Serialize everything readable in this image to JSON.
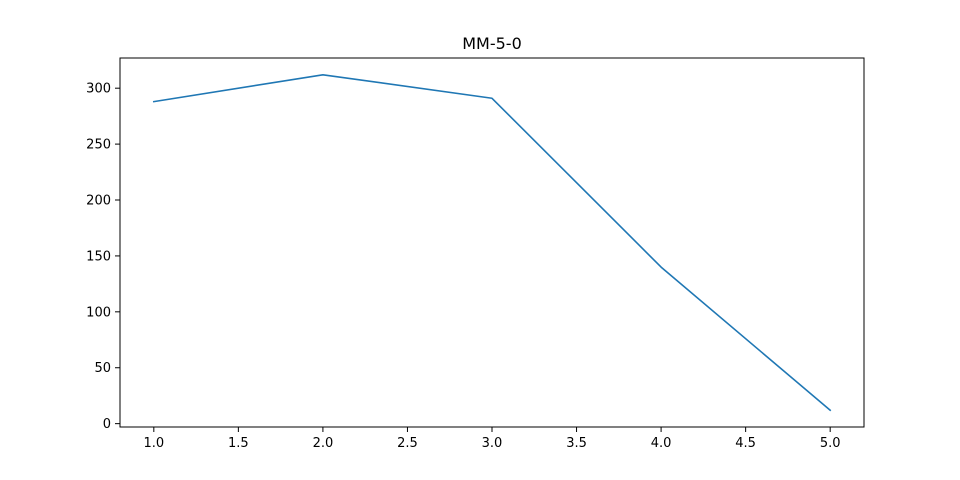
{
  "chart_data": {
    "type": "line",
    "title": "MM-5-0",
    "xlabel": "",
    "ylabel": "",
    "x": [
      1.0,
      2.0,
      3.0,
      4.0,
      5.0
    ],
    "series": [
      {
        "values": [
          288,
          312,
          291,
          140,
          12
        ],
        "color": "#1f77b4"
      }
    ],
    "xlim": [
      0.8,
      5.2
    ],
    "ylim": [
      -3,
      327
    ],
    "x_ticks": [
      1.0,
      1.5,
      2.0,
      2.5,
      3.0,
      3.5,
      4.0,
      4.5,
      5.0
    ],
    "x_tick_labels": [
      "1.0",
      "1.5",
      "2.0",
      "2.5",
      "3.0",
      "3.5",
      "4.0",
      "4.5",
      "5.0"
    ],
    "y_ticks": [
      0,
      50,
      100,
      150,
      200,
      250,
      300
    ],
    "y_tick_labels": [
      "0",
      "50",
      "100",
      "150",
      "200",
      "250",
      "300"
    ],
    "grid": false,
    "legend": "none"
  }
}
